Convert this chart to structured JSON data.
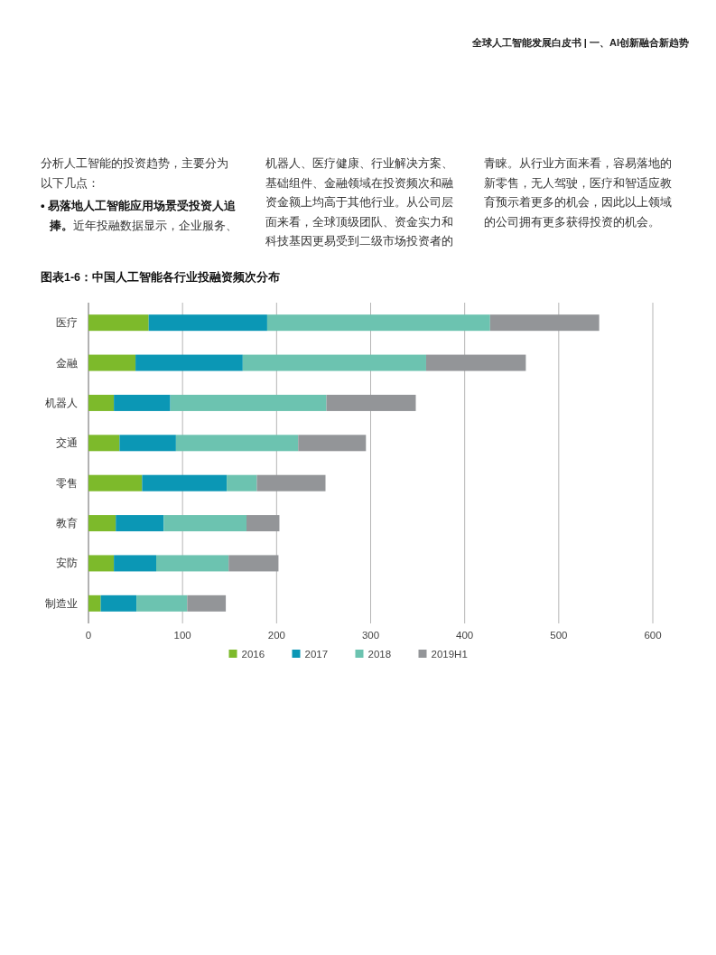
{
  "chart_data": {
    "type": "bar",
    "orientation": "horizontal",
    "stacked": true,
    "title": "图表1-6：中国人工智能各行业投融资频次分布",
    "categories": [
      "医疗",
      "金融",
      "机器人",
      "交通",
      "零售",
      "教育",
      "安防",
      "制造业"
    ],
    "series": [
      {
        "name": "2016",
        "color": "#7dba2b",
        "values": [
          64,
          50,
          27,
          33,
          57,
          29,
          27,
          13
        ]
      },
      {
        "name": "2017",
        "color": "#0b97b5",
        "values": [
          126,
          114,
          60,
          60,
          90,
          51,
          45,
          38
        ]
      },
      {
        "name": "2018",
        "color": "#6cc3b0",
        "values": [
          237,
          195,
          166,
          130,
          32,
          88,
          77,
          54
        ]
      },
      {
        "name": "2019H1",
        "color": "#939598",
        "values": [
          116,
          106,
          95,
          72,
          73,
          35,
          53,
          41
        ]
      }
    ],
    "xlim": [
      0,
      600
    ],
    "xticks": [
      0,
      100,
      200,
      300,
      400,
      500,
      600
    ],
    "grid": "x",
    "legend": "bottom",
    "annotations": [
      "全球人工智能发展白皮书 | 一、AI创新融合新趋势",
      "分析人工智能的投资趋势，主要分为以下几点：",
      "• 易落地人工智能应用场景受投资人追捧。",
      "近年投融数据显示，企业服务、",
      "机器人、医疗健康、行业解决方案、基础组件、金融领域在投资频次和融资金额上均高于其他行业。从公司层面来看，全球顶级团队、资金实力和科技基因更易受到二级市场投资者的",
      "青睐。从行业方面来看，容易落地的新零售，无人驾驶，医疗和智适应教育预示着更多的机会，因此以上领域的公司拥有更多获得投资的机会。"
    ]
  }
}
